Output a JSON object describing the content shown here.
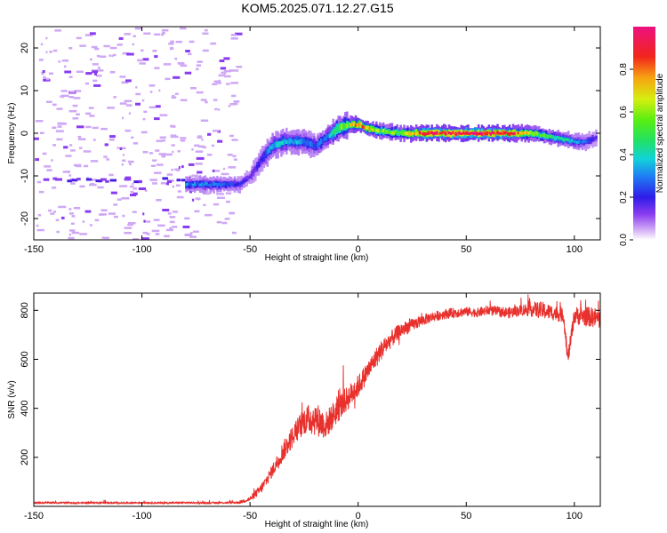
{
  "title": "KOM5.2025.071.12.27.G15",
  "chart_data": [
    {
      "type": "heatmap",
      "xlabel": "Height of straight line (km)",
      "ylabel": "Frequency (Hz)",
      "xlim": [
        -150,
        112
      ],
      "ylim": [
        -25,
        25
      ],
      "xticks": [
        -150,
        -100,
        -50,
        0,
        50,
        100
      ],
      "yticks": [
        -20,
        -10,
        0,
        10,
        20
      ],
      "colorbar": {
        "label": "Normalized spectral amplitude",
        "range": [
          0,
          1
        ],
        "ticks": [
          0.0,
          0.2,
          0.4,
          0.6,
          0.8
        ],
        "tick_labels": [
          "0.0",
          "0.2",
          "0.4",
          "0.6",
          "0.8"
        ]
      },
      "ridge": {
        "x": [
          -80,
          -70,
          -60,
          -55,
          -50,
          -45,
          -40,
          -35,
          -30,
          -25,
          -20,
          -15,
          -10,
          -5,
          0,
          5,
          10,
          20,
          30,
          40,
          50,
          60,
          70,
          80,
          90,
          100,
          105,
          110
        ],
        "frequency": [
          -12,
          -12,
          -12,
          -12,
          -10,
          -6,
          -3,
          -2,
          -2,
          -2,
          -3,
          -1,
          1,
          2,
          2,
          1,
          0.5,
          0,
          0,
          0,
          0,
          0,
          0,
          0,
          -1,
          -2,
          -2,
          -1
        ],
        "amplitude": [
          0.3,
          0.3,
          0.25,
          0.2,
          0.15,
          0.2,
          0.35,
          0.35,
          0.35,
          0.3,
          0.25,
          0.3,
          0.5,
          0.6,
          0.85,
          0.7,
          0.55,
          0.6,
          0.9,
          0.92,
          0.95,
          0.93,
          0.9,
          0.6,
          0.45,
          0.35,
          0.25,
          0.15
        ]
      },
      "noise": {
        "x_range": [
          -150,
          -56
        ],
        "y_range": [
          -25,
          25
        ],
        "amplitude_level": 0.02
      },
      "legend": "none",
      "grid": false
    },
    {
      "type": "line",
      "xlabel": "Height of straight line (km)",
      "ylabel": "SNR (v/v)",
      "xlim": [
        -150,
        112
      ],
      "ylim": [
        0,
        870
      ],
      "xticks": [
        -150,
        -100,
        -50,
        0,
        50,
        100
      ],
      "yticks": [
        200,
        400,
        600,
        800
      ],
      "color": "#e8302c",
      "series": [
        {
          "x": [
            -150,
            -140,
            -130,
            -120,
            -110,
            -100,
            -90,
            -80,
            -70,
            -60,
            -55,
            -50,
            -45,
            -40,
            -35,
            -30,
            -25,
            -20,
            -15,
            -10,
            -5,
            0,
            5,
            10,
            15,
            20,
            25,
            30,
            35,
            40,
            45,
            50,
            55,
            60,
            65,
            70,
            75,
            80,
            85,
            90,
            95,
            97,
            100,
            105,
            110,
            112
          ],
          "values": [
            15,
            15,
            14,
            15,
            14,
            15,
            14,
            15,
            14,
            15,
            16,
            30,
            70,
            140,
            220,
            290,
            350,
            360,
            330,
            390,
            440,
            490,
            560,
            630,
            680,
            720,
            740,
            760,
            775,
            785,
            790,
            795,
            790,
            800,
            795,
            790,
            800,
            805,
            800,
            790,
            780,
            600,
            780,
            775,
            770,
            760
          ],
          "noise_amplitude": [
            4,
            4,
            4,
            4,
            4,
            4,
            4,
            4,
            4,
            4,
            5,
            10,
            20,
            25,
            40,
            45,
            55,
            70,
            55,
            55,
            50,
            45,
            40,
            40,
            35,
            30,
            25,
            22,
            20,
            20,
            20,
            18,
            18,
            20,
            20,
            22,
            22,
            30,
            35,
            30,
            30,
            30,
            35,
            40,
            40,
            40
          ]
        }
      ],
      "legend": "none",
      "grid": false
    }
  ]
}
